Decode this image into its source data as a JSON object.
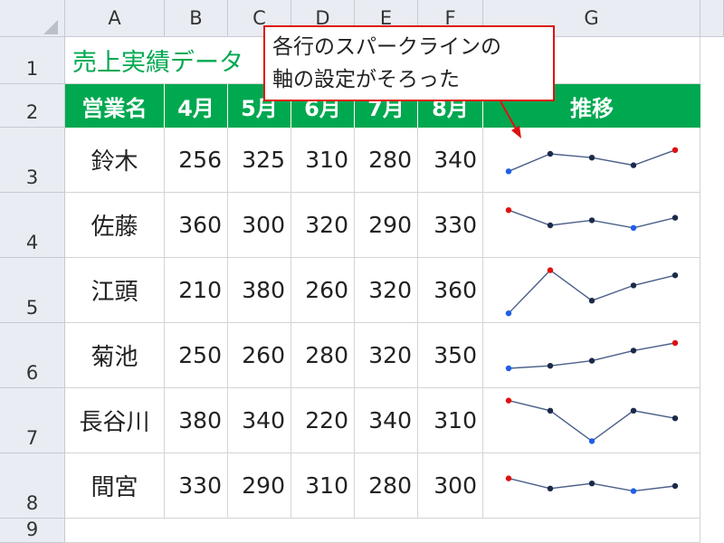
{
  "columns": [
    "A",
    "B",
    "C",
    "D",
    "E",
    "F",
    "G"
  ],
  "rows": [
    "1",
    "2",
    "3",
    "4",
    "5",
    "6",
    "7",
    "8",
    "9"
  ],
  "sheet": {
    "title": "売上実績データ",
    "headers": [
      "営業名",
      "4月",
      "5月",
      "6月",
      "7月",
      "8月",
      "推移"
    ]
  },
  "records": [
    {
      "name": "鈴木",
      "values": [
        256,
        325,
        310,
        280,
        340
      ]
    },
    {
      "name": "佐藤",
      "values": [
        360,
        300,
        320,
        290,
        330
      ]
    },
    {
      "name": "江頭",
      "values": [
        210,
        380,
        260,
        320,
        360
      ]
    },
    {
      "name": "菊池",
      "values": [
        250,
        260,
        280,
        320,
        350
      ]
    },
    {
      "name": "長谷川",
      "values": [
        380,
        340,
        220,
        340,
        310
      ]
    },
    {
      "name": "間宮",
      "values": [
        330,
        290,
        310,
        280,
        300
      ]
    }
  ],
  "sparkline": {
    "axis_min": 200,
    "axis_max": 400,
    "line_color": "#4a5f88",
    "marker_color": "#1c2a4a",
    "high_color": "#e01010",
    "low_color": "#1f5ee8"
  },
  "callout": {
    "line1": "各行のスパークラインの",
    "line2": "軸の設定がそろった",
    "border_color": "#e01010"
  },
  "theme": {
    "header_green": "#00a850",
    "header_bg": "#e9edf3"
  }
}
